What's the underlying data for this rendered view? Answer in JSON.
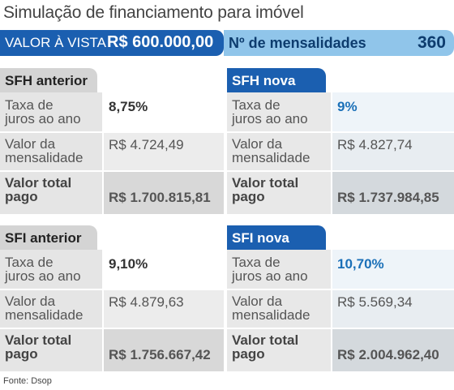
{
  "title": "Simulação de financiamento para imóvel",
  "header": {
    "valor_label": "VALOR À VISTA",
    "valor_value": "R$ 600.000,00",
    "mensalidades_label": "Nº de mensalidades",
    "mensalidades_value": "360"
  },
  "row_labels": {
    "taxa_1": "Taxa de",
    "taxa_2": "juros ao ano",
    "valor_1": "Valor da",
    "valor_2": "mensalidade",
    "total_1": "Valor total",
    "total_2": "pago"
  },
  "sfh_anterior": {
    "title": "SFH anterior",
    "taxa": "8,75%",
    "mensalidade": "R$ 4.724,49",
    "total": "R$ 1.700.815,81"
  },
  "sfh_nova": {
    "title": "SFH nova",
    "taxa": "9%",
    "mensalidade": "R$ 4.827,74",
    "total": "R$ 1.737.984,85"
  },
  "sfi_anterior": {
    "title": "SFI anterior",
    "taxa": "9,10%",
    "mensalidade": "R$ 4.879,63",
    "total": "R$ 1.756.667,42"
  },
  "sfi_nova": {
    "title": "SFI nova",
    "taxa": "10,70%",
    "mensalidade": "R$ 5.569,34",
    "total": "R$ 2.004.962,40"
  },
  "source": "Fonte: Dsop",
  "colors": {
    "accent_dark": "#1b5fb0",
    "accent_light": "#90c5ea",
    "rate_highlight": "#1b70b8"
  }
}
